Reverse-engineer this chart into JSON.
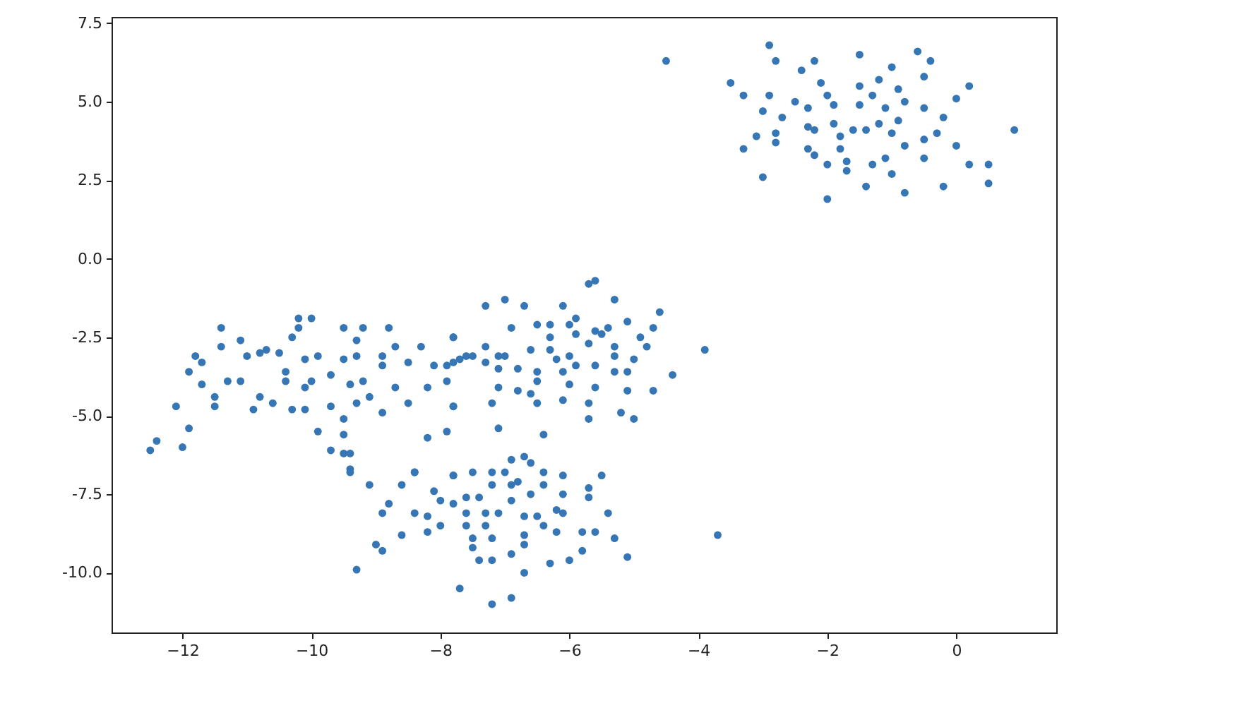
{
  "chart_data": {
    "type": "scatter",
    "marker": "circle",
    "grid": false,
    "xlim": [
      -13.1,
      1.55
    ],
    "ylim": [
      -11.9,
      7.7
    ],
    "xticks": [
      -12,
      -10,
      -8,
      -6,
      -4,
      -2,
      0
    ],
    "yticks": [
      {
        "value": -10,
        "label": "-10.0"
      },
      {
        "value": -7.5,
        "label": "-7.5"
      },
      {
        "value": -5,
        "label": "-5.0"
      },
      {
        "value": -2.5,
        "label": "-2.5"
      },
      {
        "value": 0,
        "label": "0.0"
      },
      {
        "value": 2.5,
        "label": "2.5"
      },
      {
        "value": 5,
        "label": "5.0"
      },
      {
        "value": 7.5,
        "label": "7.5"
      }
    ],
    "series": [
      {
        "color": "#3776b4",
        "x": [
          -4.5,
          -2.9,
          -2.8,
          -2.2,
          -1.5,
          -0.6,
          -0.4,
          -1.0,
          -2.4,
          -3.5,
          -3.3,
          -0.5,
          0.2,
          -1.2,
          -2.9,
          -3.0,
          -2.7,
          -2.5,
          -2.3,
          -2.1,
          -2.0,
          -1.9,
          -1.5,
          -1.5,
          -1.3,
          -1.1,
          -0.9,
          -0.8,
          -0.5,
          -0.2,
          0.0,
          0.9,
          -2.3,
          -2.2,
          -1.9,
          -1.8,
          -1.6,
          -1.4,
          -1.2,
          -1.0,
          -0.9,
          -0.3,
          -2.8,
          -3.1,
          -3.3,
          -2.8,
          -2.3,
          -2.2,
          -2.0,
          -1.8,
          -1.7,
          -1.7,
          -1.3,
          -1.1,
          -0.8,
          -0.5,
          -0.5,
          0.0,
          0.2,
          0.5,
          0.5,
          -3.0,
          -1.0,
          -1.4,
          -0.8,
          -0.2,
          -2.0,
          -12.5,
          -12.4,
          -12.0,
          -11.9,
          -12.1,
          -11.7,
          -11.9,
          -11.8,
          -11.7,
          -11.5,
          -11.5,
          -11.4,
          -11.4,
          -11.3,
          -11.1,
          -11.1,
          -11.0,
          -10.9,
          -10.8,
          -10.8,
          -10.7,
          -10.6,
          -10.5,
          -10.4,
          -10.4,
          -10.3,
          -10.3,
          -10.2,
          -10.0,
          -10.2,
          -10.1,
          -10.1,
          -10.0,
          -10.1,
          -9.9,
          -9.9,
          -9.7,
          -9.5,
          -9.5,
          -9.7,
          -9.5,
          -9.5,
          -9.7,
          -9.4,
          -9.4,
          -9.3,
          -9.3,
          -9.4,
          -9.2,
          -9.2,
          -9.1,
          -9.3,
          -8.9,
          -8.9,
          -8.7,
          -8.9,
          -8.8,
          -8.7,
          -8.5,
          -8.5,
          -8.3,
          -8.2,
          -8.1,
          -7.9,
          -7.9,
          -7.8,
          -7.7,
          -7.8,
          -7.9,
          -8.2,
          -7.6,
          -8.4,
          -7.8,
          -5.7,
          -5.6,
          -7.3,
          -7.0,
          -6.7,
          -6.1,
          -5.3,
          -4.6,
          -6.9,
          -7.8,
          -7.3,
          -7.5,
          -7.8,
          -7.3,
          -7.1,
          -7.0,
          -7.1,
          -6.8,
          -7.1,
          -7.2,
          -7.8,
          -6.8,
          -6.6,
          -6.5,
          -7.1,
          -6.4,
          -6.6,
          -6.5,
          -6.3,
          -6.3,
          -6.0,
          -5.9,
          -5.9,
          -5.6,
          -5.5,
          -5.4,
          -5.1,
          -4.9,
          -4.7,
          -4.8,
          -6.3,
          -6.2,
          -6.0,
          -5.9,
          -5.7,
          -5.6,
          -5.3,
          -5.3,
          -5.0,
          -5.3,
          -5.1,
          -6.5,
          -6.5,
          -6.1,
          -6.0,
          -5.6,
          -6.1,
          -5.7,
          -5.7,
          -5.1,
          -5.2,
          -5.0,
          -4.7,
          -4.4,
          -3.9,
          -9.5,
          -9.4,
          -9.1,
          -8.6,
          -8.4,
          -7.8,
          -8.8,
          -8.9,
          -8.4,
          -8.1,
          -8.0,
          -7.8,
          -8.2,
          -8.0,
          -8.2,
          -8.6,
          -9.0,
          -8.9,
          -9.3,
          -7.5,
          -7.2,
          -7.0,
          -6.9,
          -6.7,
          -6.6,
          -6.4,
          -7.6,
          -7.4,
          -7.2,
          -6.9,
          -6.8,
          -6.6,
          -6.4,
          -6.1,
          -5.5,
          -6.1,
          -5.7,
          -5.7,
          -7.6,
          -7.3,
          -7.6,
          -7.3,
          -7.1,
          -6.9,
          -6.7,
          -6.5,
          -6.2,
          -6.1,
          -6.4,
          -6.2,
          -6.7,
          -7.2,
          -7.5,
          -7.5,
          -6.7,
          -6.9,
          -5.8,
          -5.6,
          -5.4,
          -5.3,
          -5.8,
          -7.4,
          -7.2,
          -6.7,
          -6.3,
          -6.0,
          -5.1,
          -7.7,
          -6.9,
          -7.2,
          -3.7
        ],
        "values": [
          6.3,
          6.8,
          6.3,
          6.3,
          6.5,
          6.6,
          6.3,
          6.1,
          6.0,
          5.6,
          5.2,
          5.8,
          5.5,
          5.7,
          5.2,
          4.7,
          4.5,
          5.0,
          4.8,
          5.6,
          5.2,
          4.9,
          5.5,
          4.9,
          5.2,
          4.8,
          5.4,
          5.0,
          4.8,
          4.5,
          5.1,
          4.1,
          4.2,
          4.1,
          4.3,
          3.9,
          4.1,
          4.1,
          4.3,
          4.0,
          4.4,
          4.0,
          4.0,
          3.9,
          3.5,
          3.7,
          3.5,
          3.3,
          3.0,
          3.5,
          3.1,
          2.8,
          3.0,
          3.2,
          3.6,
          3.8,
          3.2,
          3.6,
          3.0,
          3.0,
          2.4,
          2.6,
          2.7,
          2.3,
          2.1,
          2.3,
          1.9,
          -6.1,
          -5.8,
          -6.0,
          -5.4,
          -4.7,
          -4.0,
          -3.6,
          -3.1,
          -3.3,
          -4.7,
          -4.4,
          -2.2,
          -2.8,
          -3.9,
          -2.6,
          -3.9,
          -3.1,
          -4.8,
          -4.4,
          -3.0,
          -2.9,
          -4.6,
          -3.0,
          -3.6,
          -3.9,
          -4.8,
          -2.5,
          -1.9,
          -1.9,
          -2.2,
          -3.2,
          -4.1,
          -3.9,
          -4.8,
          -5.5,
          -3.1,
          -3.7,
          -2.2,
          -3.2,
          -4.7,
          -5.1,
          -5.6,
          -6.1,
          -6.2,
          -6.7,
          -2.6,
          -3.1,
          -4.0,
          -2.2,
          -3.9,
          -4.4,
          -4.6,
          -3.1,
          -3.4,
          -4.1,
          -4.9,
          -2.2,
          -2.8,
          -4.6,
          -3.3,
          -2.8,
          -4.1,
          -3.4,
          -3.4,
          -3.9,
          -2.5,
          -3.2,
          -4.7,
          -5.5,
          -5.7,
          -3.1,
          -6.8,
          -6.9,
          -0.8,
          -0.7,
          -1.5,
          -1.3,
          -1.5,
          -1.5,
          -1.3,
          -1.7,
          -2.2,
          -2.5,
          -2.8,
          -3.1,
          -3.3,
          -3.3,
          -3.1,
          -3.1,
          -3.5,
          -3.5,
          -4.1,
          -4.6,
          -4.7,
          -4.2,
          -4.3,
          -4.6,
          -5.4,
          -5.6,
          -2.9,
          -2.1,
          -2.1,
          -2.5,
          -2.1,
          -1.9,
          -2.4,
          -2.3,
          -2.4,
          -2.2,
          -2.0,
          -2.5,
          -2.2,
          -2.8,
          -2.9,
          -3.2,
          -3.1,
          -3.4,
          -2.7,
          -3.4,
          -2.8,
          -3.1,
          -3.2,
          -3.6,
          -3.6,
          -3.6,
          -3.9,
          -3.6,
          -4.0,
          -4.1,
          -4.5,
          -4.6,
          -5.1,
          -4.2,
          -4.9,
          -5.1,
          -4.2,
          -3.7,
          -2.9,
          -6.2,
          -6.8,
          -7.2,
          -7.2,
          -6.8,
          -6.9,
          -7.8,
          -8.1,
          -8.1,
          -7.4,
          -7.7,
          -7.8,
          -8.2,
          -8.5,
          -8.7,
          -8.8,
          -9.1,
          -9.3,
          -9.9,
          -6.8,
          -6.8,
          -6.8,
          -6.4,
          -6.3,
          -6.5,
          -6.8,
          -7.6,
          -7.6,
          -7.2,
          -7.2,
          -7.1,
          -7.5,
          -7.2,
          -6.9,
          -6.9,
          -7.5,
          -7.3,
          -7.6,
          -8.1,
          -8.1,
          -8.5,
          -8.5,
          -8.1,
          -7.7,
          -8.2,
          -8.2,
          -8.0,
          -8.1,
          -8.5,
          -8.7,
          -8.8,
          -8.9,
          -8.9,
          -9.2,
          -9.1,
          -9.4,
          -8.7,
          -8.7,
          -8.1,
          -8.9,
          -9.3,
          -9.6,
          -9.6,
          -10.0,
          -9.7,
          -9.6,
          -9.5,
          -10.5,
          -10.8,
          -11.0,
          -8.8
        ]
      }
    ]
  }
}
